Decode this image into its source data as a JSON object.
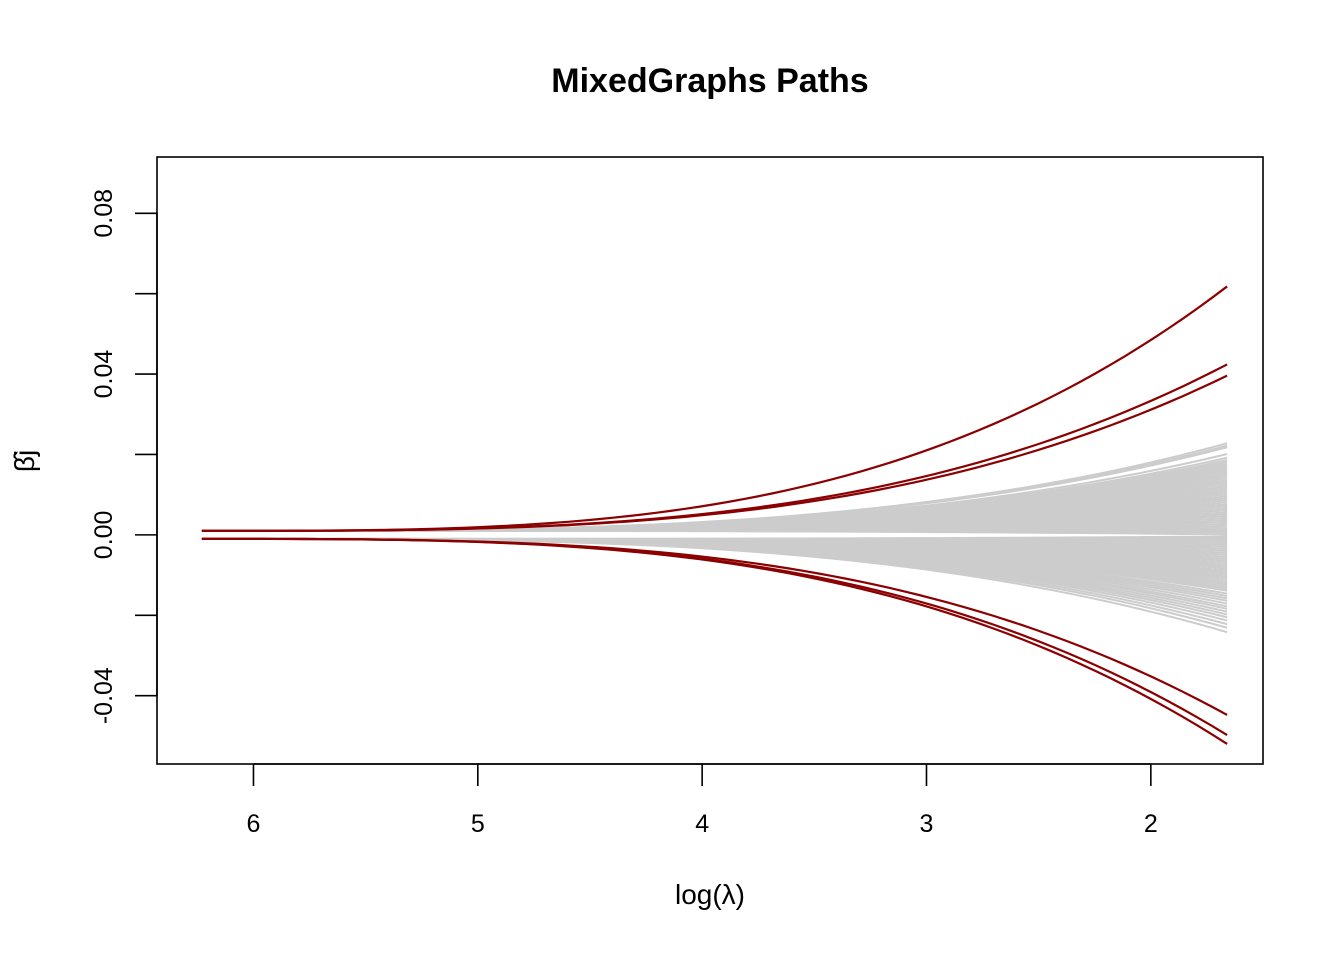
{
  "chart_data": {
    "type": "line",
    "title": "MixedGraphs Paths",
    "xlabel": "log(λ)",
    "ylabel": "β̂j",
    "x_reversed": true,
    "xlim": [
      6.43,
      1.5
    ],
    "ylim": [
      -0.057,
      0.094
    ],
    "x_ticks": [
      6,
      5,
      4,
      3,
      2
    ],
    "x_tick_labels": [
      "6",
      "5",
      "4",
      "3",
      "2"
    ],
    "y_ticks": [
      -0.04,
      -0.02,
      0.0,
      0.02,
      0.04,
      0.06,
      0.08
    ],
    "y_tick_labels": [
      "-0.04",
      "",
      "0.00",
      "",
      "0.04",
      "",
      "0.08"
    ],
    "x_range": [
      6.23,
      1.66
    ],
    "start_offsets": [
      0.001,
      -0.001
    ],
    "growth_exponent": 3.2,
    "grid": false,
    "legend": "none",
    "colors": {
      "highlight": "#8b0000",
      "background": "#cccccc",
      "axis": "#000000"
    },
    "series": [
      {
        "group": "highlight",
        "color": "#8b0000",
        "end_value": 0.0618
      },
      {
        "group": "highlight",
        "color": "#8b0000",
        "end_value": 0.0424
      },
      {
        "group": "highlight",
        "color": "#8b0000",
        "end_value": 0.0396
      },
      {
        "group": "highlight",
        "color": "#8b0000",
        "end_value": -0.0448
      },
      {
        "group": "highlight",
        "color": "#8b0000",
        "end_value": -0.0498
      },
      {
        "group": "highlight",
        "color": "#8b0000",
        "end_value": -0.052
      }
    ],
    "background_series": {
      "color": "#cccccc",
      "end_values": [
        0.0228,
        0.0222,
        0.0218,
        0.0201,
        0.0192,
        0.0186,
        0.0181,
        0.0176,
        0.0171,
        0.0166,
        0.0161,
        0.0156,
        0.0151,
        0.0146,
        0.0141,
        0.0136,
        0.0131,
        0.0126,
        0.0121,
        0.0116,
        0.0111,
        0.0106,
        0.0101,
        0.0096,
        0.0091,
        0.0086,
        0.0081,
        0.0076,
        0.0071,
        0.0066,
        0.0061,
        0.0056,
        0.0051,
        0.0046,
        0.0041,
        0.0036,
        0.0031,
        0.0026,
        0.0021,
        0.0016,
        0.0011,
        0.0006,
        0.0001,
        -0.0004,
        -0.0009,
        -0.0014,
        -0.0019,
        -0.0024,
        -0.0029,
        -0.0034,
        -0.0039,
        -0.0044,
        -0.0049,
        -0.0054,
        -0.0059,
        -0.0064,
        -0.0069,
        -0.0074,
        -0.0079,
        -0.0084,
        -0.0089,
        -0.0094,
        -0.0099,
        -0.0104,
        -0.0109,
        -0.0114,
        -0.0119,
        -0.0124,
        -0.0129,
        -0.0134,
        -0.0139,
        -0.0146,
        -0.0152,
        -0.0158,
        -0.0164,
        -0.0171,
        -0.0178,
        -0.0184,
        -0.0191,
        -0.0198,
        -0.0205,
        -0.0213,
        -0.0222,
        -0.0231,
        -0.0242
      ]
    }
  }
}
